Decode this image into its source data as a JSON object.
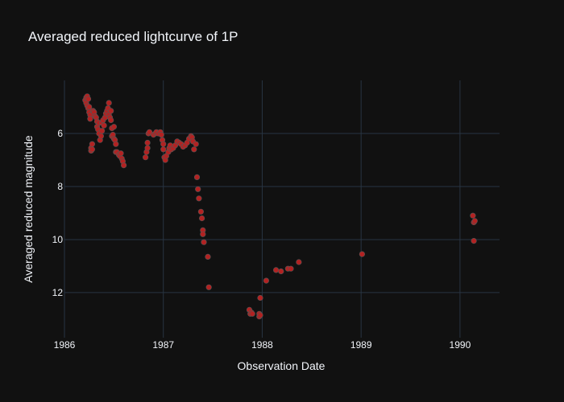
{
  "chart_data": {
    "type": "scatter",
    "title": "Averaged reduced lightcurve of 1P",
    "xlabel": "Observation Date",
    "ylabel": "Averaged reduced magnitude",
    "xlim": [
      1986.0,
      1990.4
    ],
    "ylim": [
      13.7,
      4.0
    ],
    "y_reversed": true,
    "x_ticks": [
      {
        "value": 1986,
        "label": "1986"
      },
      {
        "value": 1987,
        "label": "1987"
      },
      {
        "value": 1988,
        "label": "1988"
      },
      {
        "value": 1989,
        "label": "1989"
      },
      {
        "value": 1990,
        "label": "1990"
      }
    ],
    "y_ticks": [
      {
        "value": 6,
        "label": "6"
      },
      {
        "value": 8,
        "label": "8"
      },
      {
        "value": 10,
        "label": "10"
      },
      {
        "value": 12,
        "label": "12"
      }
    ],
    "grid": true,
    "legend": "none",
    "colors": {
      "background": "#111111",
      "grid": "#283442",
      "text": "#f2f5fa",
      "marker": "#b22222",
      "marker_outline": "#555555"
    },
    "series": [
      {
        "points": [
          [
            1986.21,
            4.75
          ],
          [
            1986.22,
            4.65
          ],
          [
            1986.22,
            4.85
          ],
          [
            1986.23,
            4.6
          ],
          [
            1986.23,
            4.95
          ],
          [
            1986.24,
            4.7
          ],
          [
            1986.24,
            5.05
          ],
          [
            1986.25,
            5.0
          ],
          [
            1986.25,
            5.2
          ],
          [
            1986.26,
            5.3
          ],
          [
            1986.26,
            5.45
          ],
          [
            1986.27,
            6.65
          ],
          [
            1986.27,
            6.55
          ],
          [
            1986.28,
            6.4
          ],
          [
            1986.28,
            6.6
          ],
          [
            1986.29,
            5.15
          ],
          [
            1986.3,
            5.2
          ],
          [
            1986.31,
            5.35
          ],
          [
            1986.32,
            5.4
          ],
          [
            1986.33,
            5.55
          ],
          [
            1986.33,
            5.75
          ],
          [
            1986.34,
            5.85
          ],
          [
            1986.35,
            6.0
          ],
          [
            1986.35,
            5.6
          ],
          [
            1986.36,
            6.25
          ],
          [
            1986.37,
            6.1
          ],
          [
            1986.38,
            5.9
          ],
          [
            1986.38,
            5.6
          ],
          [
            1986.39,
            5.5
          ],
          [
            1986.4,
            5.7
          ],
          [
            1986.41,
            5.4
          ],
          [
            1986.42,
            5.25
          ],
          [
            1986.43,
            5.15
          ],
          [
            1986.44,
            5.05
          ],
          [
            1986.45,
            5.3
          ],
          [
            1986.45,
            4.85
          ],
          [
            1986.46,
            5.4
          ],
          [
            1986.47,
            5.5
          ],
          [
            1986.47,
            5.15
          ],
          [
            1986.48,
            5.8
          ],
          [
            1986.48,
            6.1
          ],
          [
            1986.49,
            6.05
          ],
          [
            1986.5,
            6.2
          ],
          [
            1986.5,
            5.75
          ],
          [
            1986.51,
            6.25
          ],
          [
            1986.52,
            6.4
          ],
          [
            1986.52,
            6.7
          ],
          [
            1986.53,
            6.7
          ],
          [
            1986.55,
            6.8
          ],
          [
            1986.56,
            6.85
          ],
          [
            1986.57,
            6.75
          ],
          [
            1986.58,
            6.95
          ],
          [
            1986.59,
            7.05
          ],
          [
            1986.6,
            7.2
          ],
          [
            1986.82,
            6.9
          ],
          [
            1986.83,
            6.7
          ],
          [
            1986.84,
            6.55
          ],
          [
            1986.84,
            6.35
          ],
          [
            1986.85,
            6.0
          ],
          [
            1986.86,
            5.95
          ],
          [
            1986.9,
            6.05
          ],
          [
            1986.92,
            6.0
          ],
          [
            1986.93,
            5.95
          ],
          [
            1986.95,
            6.0
          ],
          [
            1986.97,
            5.95
          ],
          [
            1986.98,
            6.05
          ],
          [
            1986.99,
            6.25
          ],
          [
            1987.0,
            6.4
          ],
          [
            1987.0,
            6.6
          ],
          [
            1987.01,
            6.9
          ],
          [
            1987.02,
            7.0
          ],
          [
            1987.03,
            6.85
          ],
          [
            1987.05,
            6.7
          ],
          [
            1987.06,
            6.55
          ],
          [
            1987.07,
            6.45
          ],
          [
            1987.08,
            6.6
          ],
          [
            1987.1,
            6.55
          ],
          [
            1987.12,
            6.45
          ],
          [
            1987.14,
            6.3
          ],
          [
            1987.16,
            6.35
          ],
          [
            1987.18,
            6.4
          ],
          [
            1987.2,
            6.5
          ],
          [
            1987.22,
            6.45
          ],
          [
            1987.24,
            6.35
          ],
          [
            1987.26,
            6.2
          ],
          [
            1987.28,
            6.1
          ],
          [
            1987.29,
            6.15
          ],
          [
            1987.3,
            6.3
          ],
          [
            1987.31,
            6.6
          ],
          [
            1987.33,
            6.4
          ],
          [
            1987.34,
            7.65
          ],
          [
            1987.35,
            8.1
          ],
          [
            1987.36,
            8.45
          ],
          [
            1987.38,
            8.95
          ],
          [
            1987.39,
            9.2
          ],
          [
            1987.4,
            9.65
          ],
          [
            1987.4,
            9.8
          ],
          [
            1987.41,
            10.1
          ],
          [
            1987.45,
            10.65
          ],
          [
            1987.46,
            11.8
          ],
          [
            1987.87,
            12.65
          ],
          [
            1987.88,
            12.8
          ],
          [
            1987.89,
            12.75
          ],
          [
            1987.9,
            12.8
          ],
          [
            1987.97,
            12.8
          ],
          [
            1987.97,
            12.9
          ],
          [
            1987.98,
            12.85
          ],
          [
            1987.98,
            12.2
          ],
          [
            1988.04,
            11.55
          ],
          [
            1988.14,
            11.15
          ],
          [
            1988.19,
            11.2
          ],
          [
            1988.26,
            11.1
          ],
          [
            1988.29,
            11.1
          ],
          [
            1988.37,
            10.85
          ],
          [
            1989.01,
            10.55
          ],
          [
            1990.13,
            9.1
          ],
          [
            1990.14,
            9.35
          ],
          [
            1990.15,
            9.3
          ],
          [
            1990.14,
            10.05
          ]
        ]
      }
    ]
  }
}
